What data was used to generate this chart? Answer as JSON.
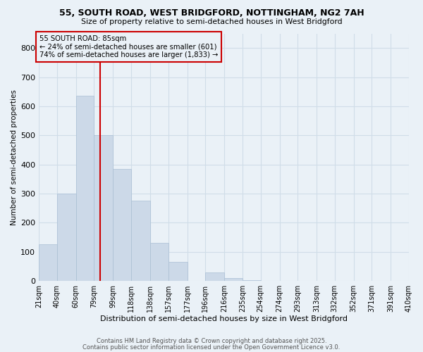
{
  "title1": "55, SOUTH ROAD, WEST BRIDGFORD, NOTTINGHAM, NG2 7AH",
  "title2": "Size of property relative to semi-detached houses in West Bridgford",
  "xlabel": "Distribution of semi-detached houses by size in West Bridgford",
  "ylabel": "Number of semi-detached properties",
  "bin_edges": [
    21,
    40,
    60,
    79,
    99,
    118,
    138,
    157,
    177,
    196,
    216,
    235,
    254,
    274,
    293,
    313,
    332,
    352,
    371,
    391,
    410
  ],
  "bin_labels": [
    "21sqm",
    "40sqm",
    "60sqm",
    "79sqm",
    "99sqm",
    "118sqm",
    "138sqm",
    "157sqm",
    "177sqm",
    "196sqm",
    "216sqm",
    "235sqm",
    "254sqm",
    "274sqm",
    "293sqm",
    "313sqm",
    "332sqm",
    "352sqm",
    "371sqm",
    "391sqm",
    "410sqm"
  ],
  "counts": [
    125,
    300,
    635,
    500,
    385,
    275,
    130,
    65,
    0,
    30,
    10,
    2,
    0,
    0,
    0,
    0,
    0,
    0,
    0,
    0
  ],
  "bar_color": "#ccd9e8",
  "bar_edge_color": "#aabfd4",
  "vline_x": 85,
  "vline_color": "#cc0000",
  "annotation_title": "55 SOUTH ROAD: 85sqm",
  "annotation_line1": "← 24% of semi-detached houses are smaller (601)",
  "annotation_line2": "74% of semi-detached houses are larger (1,833) →",
  "ylim": [
    0,
    850
  ],
  "yticks": [
    0,
    100,
    200,
    300,
    400,
    500,
    600,
    700,
    800
  ],
  "grid_color": "#d0dde8",
  "bg_color": "#eaf1f7",
  "footer1": "Contains HM Land Registry data © Crown copyright and database right 2025.",
  "footer2": "Contains public sector information licensed under the Open Government Licence v3.0."
}
